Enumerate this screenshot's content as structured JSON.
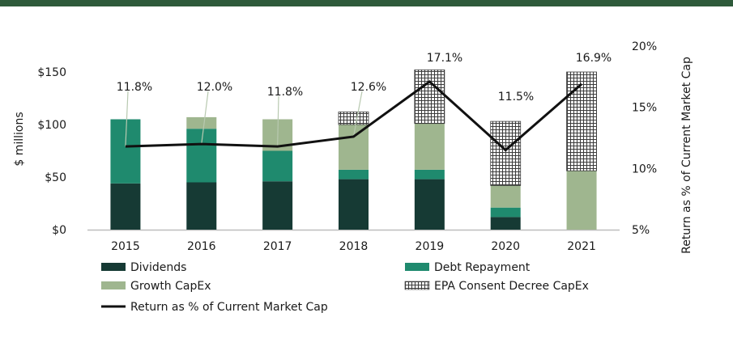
{
  "colors": {
    "top_bar": "#2e5a3a",
    "dividends": "#163a34",
    "debt_repayment": "#1f8a6e",
    "growth_capex": "#9fb68f",
    "epa_hatch": "#3b3b3b",
    "return_line": "#111111",
    "axis": "#bdbdbd",
    "leader": "#b8c9b0"
  },
  "chart_data": {
    "type": "bar",
    "stacked": true,
    "categories": [
      "2015",
      "2016",
      "2017",
      "2018",
      "2019",
      "2020",
      "2021"
    ],
    "series": [
      {
        "name": "Dividends",
        "key": "dividends",
        "values": [
          44,
          45,
          46,
          48,
          48,
          12,
          0
        ]
      },
      {
        "name": "Debt Repayment",
        "key": "debt_repayment",
        "values": [
          61,
          51,
          29,
          9,
          9,
          9,
          0
        ]
      },
      {
        "name": "Growth CapEx",
        "key": "growth_capex",
        "values": [
          0,
          11,
          30,
          43,
          44,
          21,
          56
        ]
      },
      {
        "name": "EPA Consent Decree CapEx",
        "key": "epa",
        "values": [
          0,
          0,
          0,
          12,
          51,
          61,
          94
        ]
      }
    ],
    "line_series": {
      "name": "Return as % of Current Market Cap",
      "values": [
        11.8,
        12.0,
        11.8,
        12.6,
        17.1,
        11.5,
        16.9
      ],
      "labels": [
        "11.8%",
        "12.0%",
        "11.8%",
        "12.6%",
        "17.1%",
        "11.5%",
        "16.9%"
      ]
    },
    "ylabel": "$ millions",
    "y2label": "Return as % of Current Market Cap",
    "ylim": [
      0,
      150
    ],
    "y2lim": [
      5,
      20
    ],
    "y_ticks": [
      0,
      50,
      100,
      150
    ],
    "y_tick_labels": [
      "$0",
      "$50",
      "$100",
      "$150"
    ],
    "y2_ticks": [
      5,
      10,
      15,
      20
    ],
    "y2_tick_labels": [
      "5%",
      "10%",
      "15%",
      "20%"
    ],
    "legend": [
      "Dividends",
      "Debt Repayment",
      "Growth CapEx",
      "EPA Consent Decree CapEx",
      "Return as % of Current Market Cap"
    ],
    "legend_position": "bottom",
    "grid": false
  }
}
